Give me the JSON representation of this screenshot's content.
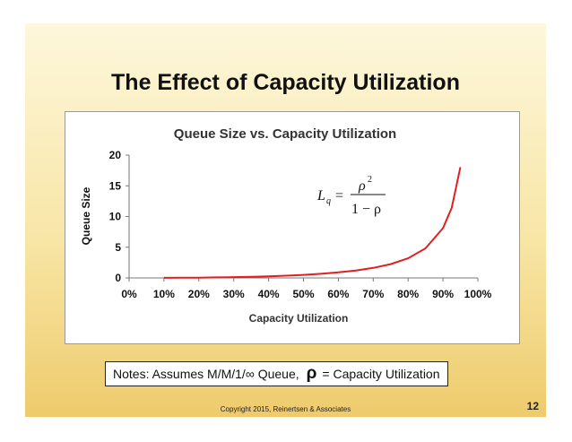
{
  "slide": {
    "title": "The Effect of Capacity Utilization",
    "notes_prefix": "Notes: Assumes M/M/1/∞ Queue,",
    "notes_symbol": "ρ",
    "notes_suffix": "= Capacity Utilization",
    "copyright": "Copyright 2015, Reinertsen & Associates",
    "page_number": "12"
  },
  "formula": {
    "lhs": "L",
    "lhs_subscript": "q",
    "equals": "=",
    "numerator": "ρ",
    "numerator_power": "2",
    "denominator": "1 − ρ"
  },
  "colors": {
    "line": "#e02020",
    "background_top": "#fdf7dc",
    "background_bottom": "#eecb6c"
  },
  "chart_data": {
    "type": "line",
    "title": "Queue Size vs. Capacity Utilization",
    "xlabel": "Capacity Utilization",
    "ylabel": "Queue Size",
    "xlim": [
      0,
      100
    ],
    "ylim": [
      0,
      20
    ],
    "x_ticks": [
      "0%",
      "10%",
      "20%",
      "30%",
      "40%",
      "50%",
      "60%",
      "70%",
      "80%",
      "90%",
      "100%"
    ],
    "y_ticks": [
      "0",
      "5",
      "10",
      "15",
      "20"
    ],
    "grid": false,
    "legend": "none",
    "series": [
      {
        "x": [
          10,
          15,
          20,
          25,
          30,
          35,
          40,
          45,
          50,
          55,
          60,
          65,
          70,
          75,
          80,
          85,
          90,
          92.5,
          95
        ],
        "y": [
          0.011,
          0.026,
          0.05,
          0.083,
          0.129,
          0.188,
          0.267,
          0.368,
          0.5,
          0.672,
          0.9,
          1.207,
          1.633,
          2.25,
          3.2,
          4.817,
          8.1,
          11.408,
          18.05
        ]
      }
    ]
  }
}
